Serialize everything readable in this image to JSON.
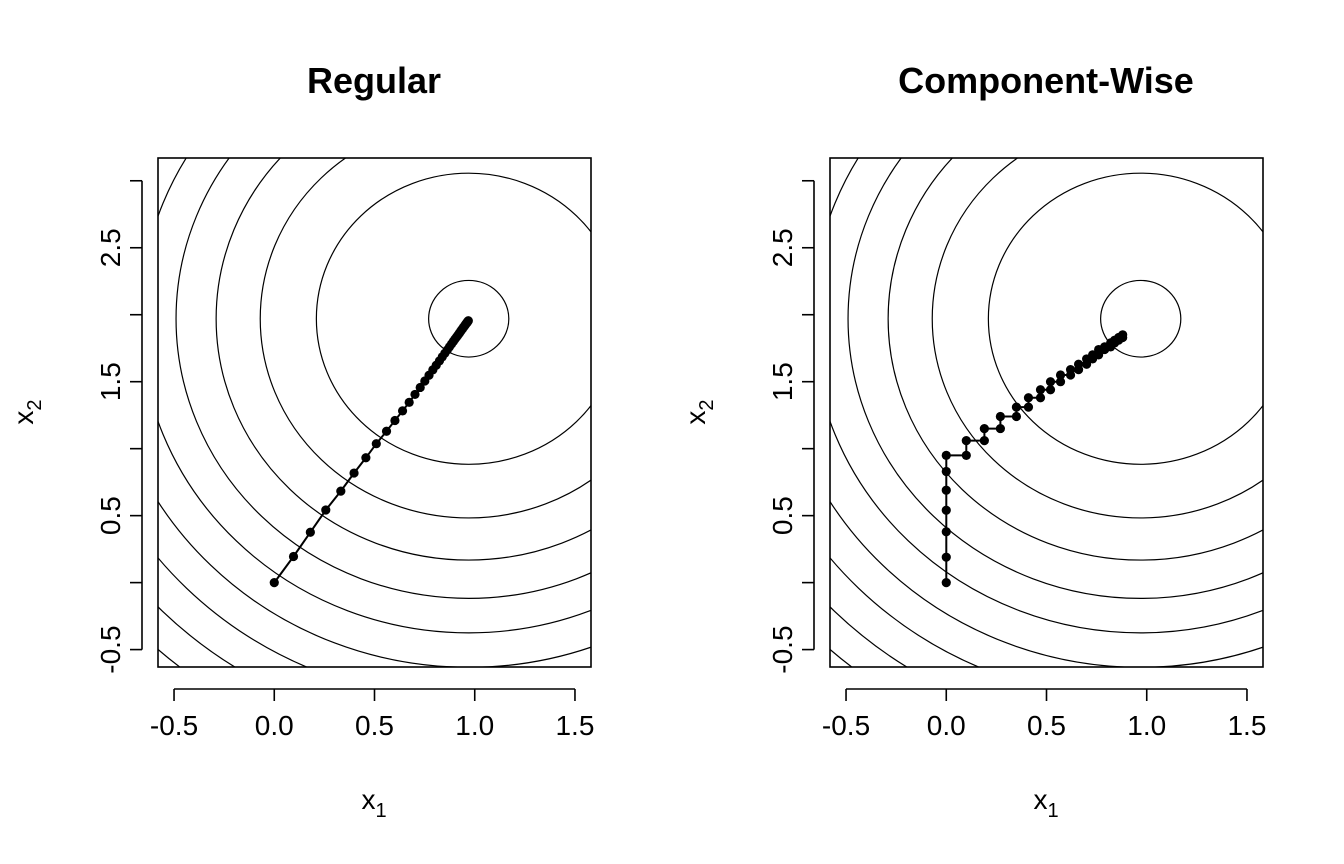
{
  "chart_data": [
    {
      "type": "line",
      "title": "Regular",
      "xlabel": {
        "main": "x",
        "sub": "1"
      },
      "ylabel": {
        "main": "x",
        "sub": "2"
      },
      "xlim": [
        -0.58,
        1.58
      ],
      "ylim": [
        -0.63,
        3.17
      ],
      "xticks": [
        -0.5,
        0.0,
        0.5,
        1.0,
        1.5
      ],
      "xtick_labels": [
        "-0.5",
        "0.0",
        "0.5",
        "1.0",
        "1.5"
      ],
      "yticks": [
        -0.5,
        0.5,
        1.5,
        2.5
      ],
      "ytick_labels": [
        "-0.5",
        "0.5",
        "1.5",
        "2.5"
      ],
      "contour_center": [
        0.97,
        1.97
      ],
      "contour_axis_ratio": 1.43,
      "contour_semi_x": [
        0.2,
        0.76,
        1.04,
        1.26,
        1.46,
        1.64,
        1.82,
        1.99,
        2.16,
        2.32,
        2.48,
        2.63,
        2.79,
        2.93,
        3.07
      ],
      "series": [
        {
          "type": "line+points",
          "points": [
            [
              0.0,
              0.0
            ],
            [
              0.096,
              0.195
            ],
            [
              0.18,
              0.376
            ],
            [
              0.257,
              0.542
            ],
            [
              0.332,
              0.683
            ],
            [
              0.398,
              0.818
            ],
            [
              0.457,
              0.932
            ],
            [
              0.509,
              1.037
            ],
            [
              0.56,
              1.13
            ],
            [
              0.602,
              1.21
            ],
            [
              0.64,
              1.282
            ],
            [
              0.673,
              1.346
            ],
            [
              0.702,
              1.405
            ],
            [
              0.728,
              1.457
            ],
            [
              0.751,
              1.505
            ],
            [
              0.772,
              1.548
            ],
            [
              0.791,
              1.588
            ],
            [
              0.808,
              1.623
            ],
            [
              0.824,
              1.655
            ],
            [
              0.838,
              1.685
            ],
            [
              0.851,
              1.712
            ],
            [
              0.863,
              1.737
            ],
            [
              0.874,
              1.76
            ],
            [
              0.884,
              1.781
            ],
            [
              0.893,
              1.8
            ],
            [
              0.901,
              1.817
            ],
            [
              0.909,
              1.833
            ],
            [
              0.916,
              1.847
            ],
            [
              0.922,
              1.86
            ],
            [
              0.928,
              1.872
            ],
            [
              0.933,
              1.883
            ],
            [
              0.938,
              1.893
            ],
            [
              0.942,
              1.902
            ],
            [
              0.946,
              1.91
            ],
            [
              0.95,
              1.918
            ],
            [
              0.953,
              1.925
            ],
            [
              0.956,
              1.931
            ],
            [
              0.959,
              1.937
            ],
            [
              0.962,
              1.942
            ],
            [
              0.964,
              1.947
            ],
            [
              0.966,
              1.951
            ],
            [
              0.968,
              1.955
            ]
          ]
        }
      ]
    },
    {
      "type": "line",
      "title": "Component-Wise",
      "xlabel": {
        "main": "x",
        "sub": "1"
      },
      "ylabel": {
        "main": "x",
        "sub": "2"
      },
      "xlim": [
        -0.58,
        1.58
      ],
      "ylim": [
        -0.63,
        3.17
      ],
      "xticks": [
        -0.5,
        0.0,
        0.5,
        1.0,
        1.5
      ],
      "xtick_labels": [
        "-0.5",
        "0.0",
        "0.5",
        "1.0",
        "1.5"
      ],
      "yticks": [
        -0.5,
        0.5,
        1.5,
        2.5
      ],
      "ytick_labels": [
        "-0.5",
        "0.5",
        "1.5",
        "2.5"
      ],
      "contour_center": [
        0.97,
        1.97
      ],
      "contour_axis_ratio": 1.43,
      "contour_semi_x": [
        0.2,
        0.76,
        1.04,
        1.26,
        1.46,
        1.64,
        1.82,
        1.99,
        2.16,
        2.32,
        2.48,
        2.63,
        2.79,
        2.93,
        3.07
      ],
      "series": [
        {
          "type": "line+points",
          "points": [
            [
              0.0,
              0.0
            ],
            [
              0.0,
              0.19
            ],
            [
              0.0,
              0.38
            ],
            [
              0.0,
              0.54
            ],
            [
              0.0,
              0.69
            ],
            [
              0.0,
              0.83
            ],
            [
              0.0,
              0.95
            ],
            [
              0.1,
              0.95
            ],
            [
              0.1,
              1.06
            ],
            [
              0.19,
              1.06
            ],
            [
              0.19,
              1.15
            ],
            [
              0.27,
              1.15
            ],
            [
              0.27,
              1.24
            ],
            [
              0.35,
              1.24
            ],
            [
              0.35,
              1.31
            ],
            [
              0.41,
              1.31
            ],
            [
              0.41,
              1.38
            ],
            [
              0.47,
              1.38
            ],
            [
              0.47,
              1.44
            ],
            [
              0.52,
              1.44
            ],
            [
              0.52,
              1.5
            ],
            [
              0.57,
              1.5
            ],
            [
              0.57,
              1.55
            ],
            [
              0.62,
              1.55
            ],
            [
              0.62,
              1.59
            ],
            [
              0.66,
              1.59
            ],
            [
              0.66,
              1.63
            ],
            [
              0.7,
              1.63
            ],
            [
              0.7,
              1.67
            ],
            [
              0.73,
              1.67
            ],
            [
              0.73,
              1.7
            ],
            [
              0.76,
              1.7
            ],
            [
              0.76,
              1.74
            ],
            [
              0.79,
              1.74
            ],
            [
              0.79,
              1.76
            ],
            [
              0.82,
              1.76
            ],
            [
              0.82,
              1.79
            ],
            [
              0.84,
              1.79
            ],
            [
              0.84,
              1.81
            ],
            [
              0.86,
              1.81
            ],
            [
              0.86,
              1.83
            ],
            [
              0.88,
              1.83
            ],
            [
              0.88,
              1.85
            ]
          ]
        }
      ]
    }
  ]
}
